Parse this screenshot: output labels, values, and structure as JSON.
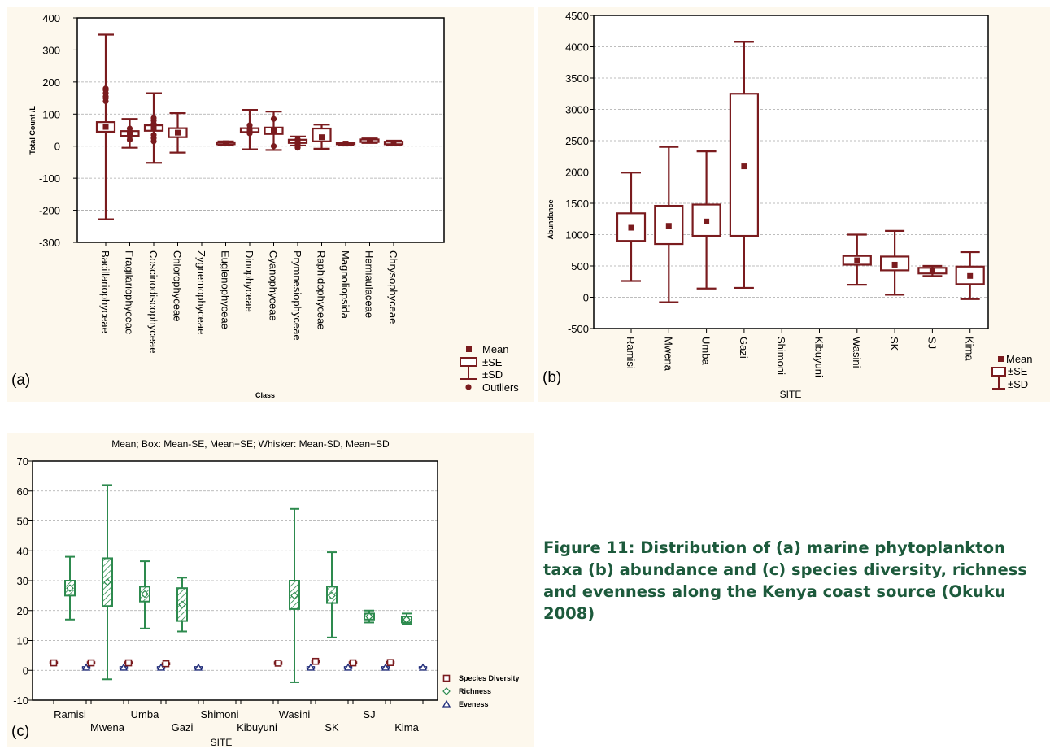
{
  "colors": {
    "dark_red": "#7a1b1e",
    "green": "#2d8a4e",
    "navy": "#1e2a78",
    "grid": "#a8a8a8",
    "caption": "#1d5a3c"
  },
  "caption": "Figure 11: Distribution of (a) marine phytoplankton taxa (b) abundance and (c) species diversity, richness and evenness along the Kenya coast source (Okuku 2008)",
  "chart_data": [
    {
      "type": "box",
      "panel_label": "(a)",
      "xlabel": "Class",
      "ylabel": "Total Count /L",
      "ylim": [
        -300,
        400
      ],
      "yticks": [
        -300,
        -200,
        -100,
        0,
        100,
        200,
        300,
        400
      ],
      "grid": true,
      "legend": [
        "Mean",
        "±SE",
        "±SD",
        "Outliers"
      ],
      "legend_position": "bottom-right",
      "categories": [
        "Bacillariophyceae",
        "Fragilariophyceae",
        "Coscinodiscophyceae",
        "Chlorophyceae",
        "Zygnemophyceae",
        "Euglenophyceae",
        "Dinophyceae",
        "Cyanophyceae",
        "Prymnesiophyceae",
        "Raphidophyceae",
        "Magnoliopsida",
        "Hemiaulaceae",
        "Chrysophyceae"
      ],
      "series": [
        {
          "mean": [
            60,
            40,
            57,
            42,
            null,
            9,
            50,
            48,
            15,
            28,
            8,
            17,
            10
          ],
          "se_low": [
            45,
            32,
            48,
            28,
            null,
            6,
            44,
            38,
            10,
            15,
            6,
            13,
            6
          ],
          "se_high": [
            75,
            47,
            65,
            56,
            null,
            12,
            56,
            58,
            20,
            55,
            10,
            21,
            14
          ],
          "sd_low": [
            -228,
            -5,
            -52,
            -20,
            null,
            2,
            -10,
            -12,
            2,
            -8,
            4,
            10,
            2
          ],
          "sd_high": [
            348,
            85,
            165,
            103,
            null,
            15,
            113,
            108,
            30,
            67,
            11,
            24,
            17
          ],
          "outliers": [
            [
              140,
              150,
              155,
              165,
              175,
              180
            ],
            [
              20,
              30,
              45,
              55
            ],
            [
              15,
              25,
              35,
              70,
              80,
              88
            ],
            [],
            [],
            [],
            [
              40,
              55,
              65
            ],
            [
              0,
              85
            ],
            [
              -5,
              0,
              5,
              22
            ],
            [],
            [],
            [],
            []
          ]
        }
      ]
    },
    {
      "type": "box",
      "panel_label": "(b)",
      "xlabel": "SITE",
      "ylabel": "Abundance",
      "ylim": [
        -500,
        4500
      ],
      "yticks": [
        -500,
        0,
        500,
        1000,
        1500,
        2000,
        2500,
        3000,
        3500,
        4000,
        4500
      ],
      "grid": true,
      "legend": [
        "Mean",
        "±SE",
        "±SD"
      ],
      "legend_position": "bottom-right",
      "categories": [
        "Ramisi",
        "Mwena",
        "Umba",
        "Gazi",
        "Shimoni",
        "Kibuyuni",
        "Wasini",
        "SK",
        "SJ",
        "Kima"
      ],
      "series": [
        {
          "mean": [
            1110,
            1140,
            1210,
            2090,
            null,
            null,
            590,
            520,
            420,
            340
          ],
          "se_low": [
            900,
            850,
            980,
            980,
            null,
            null,
            520,
            430,
            380,
            210
          ],
          "se_high": [
            1340,
            1460,
            1480,
            3250,
            null,
            null,
            660,
            650,
            470,
            490
          ],
          "sd_low": [
            260,
            -80,
            140,
            150,
            null,
            null,
            200,
            40,
            340,
            -30
          ],
          "sd_high": [
            1990,
            2400,
            2330,
            4080,
            null,
            null,
            1000,
            1060,
            500,
            720
          ]
        }
      ]
    },
    {
      "type": "box",
      "panel_label": "(c)",
      "title": "Mean; Box: Mean-SE, Mean+SE; Whisker: Mean-SD, Mean+SD",
      "xlabel": "SITE",
      "ylabel": "",
      "ylim": [
        -10,
        70
      ],
      "yticks": [
        -10,
        0,
        10,
        20,
        30,
        40,
        50,
        60,
        70
      ],
      "grid": true,
      "legend_position": "bottom-right",
      "categories": [
        "Ramisi",
        "Mwena",
        "Umba",
        "Gazi",
        "Shimoni",
        "Kibuyuni",
        "Wasini",
        "SK",
        "SJ",
        "Kima"
      ],
      "series": [
        {
          "name": "Species Diversity",
          "color": "#7a1b1e",
          "mean": [
            2.5,
            2.5,
            2.5,
            2.2,
            null,
            null,
            2.4,
            3.0,
            2.5,
            2.6
          ],
          "se_low": [
            2.2,
            2.2,
            2.2,
            1.9,
            null,
            null,
            2.0,
            2.7,
            2.2,
            2.3
          ],
          "se_high": [
            2.8,
            2.8,
            2.8,
            2.5,
            null,
            null,
            2.8,
            3.3,
            2.8,
            2.9
          ]
        },
        {
          "name": "Richness",
          "color": "#2d8a4e",
          "mean": [
            27.5,
            29.5,
            25.5,
            22,
            null,
            null,
            25,
            25,
            18,
            17
          ],
          "se_low": [
            25,
            21.5,
            23,
            16.5,
            null,
            null,
            20.5,
            22.5,
            17,
            16
          ],
          "se_high": [
            30,
            37.5,
            28,
            27.5,
            null,
            null,
            30,
            28,
            19,
            18
          ],
          "sd_low": [
            17,
            -3,
            14,
            13,
            null,
            null,
            -4,
            11,
            16,
            15.5
          ],
          "sd_high": [
            38,
            62,
            36.5,
            31,
            null,
            null,
            54,
            39.5,
            20,
            19
          ]
        },
        {
          "name": "Eveness",
          "color": "#1e2a78",
          "mean": [
            0.9,
            0.9,
            0.9,
            0.9,
            null,
            null,
            0.9,
            0.9,
            0.9,
            0.9
          ],
          "se_low": [
            0.6,
            0.6,
            0.6,
            0.6,
            null,
            null,
            0.6,
            0.6,
            0.6,
            0.6
          ],
          "se_high": [
            1.2,
            1.2,
            1.2,
            1.2,
            null,
            null,
            1.2,
            1.2,
            1.2,
            1.2
          ]
        }
      ]
    }
  ]
}
